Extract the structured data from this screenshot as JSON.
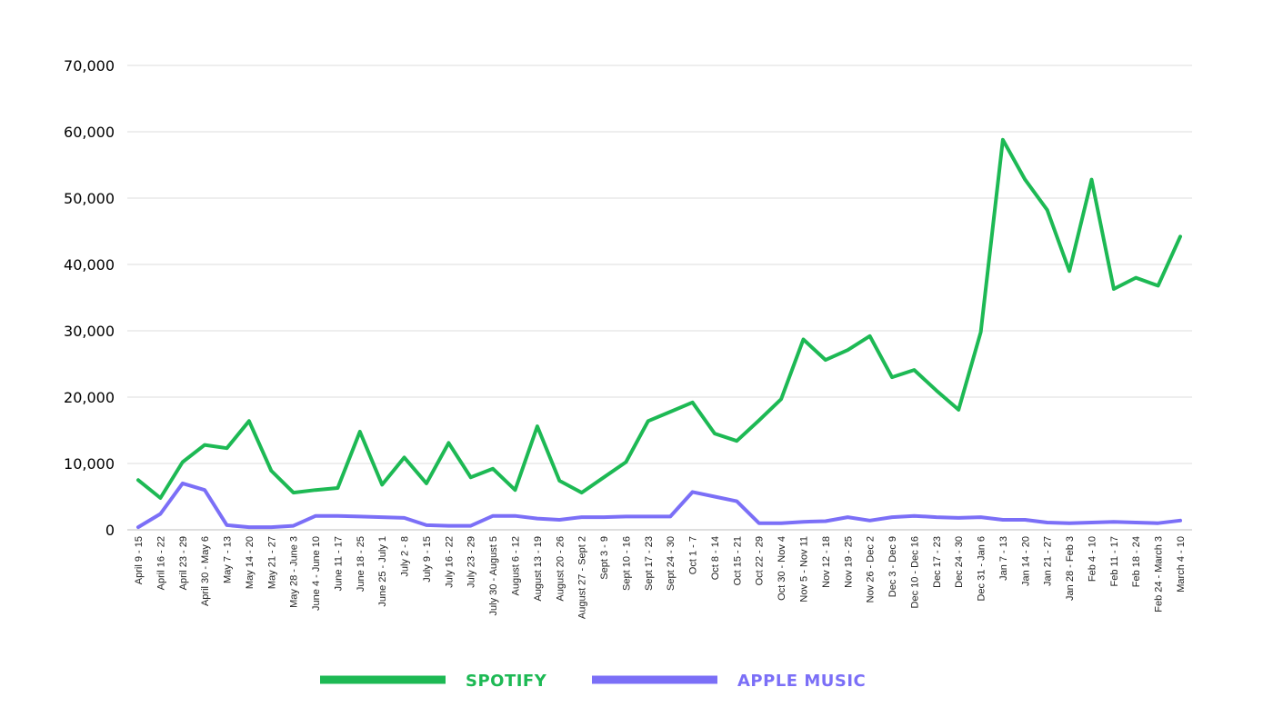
{
  "chart_data": {
    "type": "line",
    "title": "",
    "xlabel": "",
    "ylabel": "",
    "ylim": [
      0,
      70000
    ],
    "yticks": [
      0,
      10000,
      20000,
      30000,
      40000,
      50000,
      60000,
      70000
    ],
    "ytick_labels": [
      "0",
      "10,000",
      "20,000",
      "30,000",
      "40,000",
      "50,000",
      "60,000",
      "70,000"
    ],
    "grid": true,
    "legend_position": "bottom",
    "categories": [
      "April 9 - 15",
      "April 16 - 22",
      "April 23 - 29",
      "April 30 - May 6",
      "May 7 - 13",
      "May 14 - 20",
      "May 21 - 27",
      "May 28 - June 3",
      "June 4 - June 10",
      "June 11 - 17",
      "June 18 - 25",
      "June 25 - July 1",
      "July 2 - 8",
      "July 9 - 15",
      "July 16 - 22",
      "July 23 - 29",
      "July 30 - August 5",
      "August 6 - 12",
      "August 13 - 19",
      "August 20 - 26",
      "August 27 - Sept 2",
      "Sept 3 - 9",
      "Sept 10 - 16",
      "Sept 17 - 23",
      "Sept 24 - 30",
      "Oct 1 - 7",
      "Oct 8 - 14",
      "Oct 15 - 21",
      "Oct 22 - 29",
      "Oct 30 - Nov 4",
      "Nov 5 - Nov 11",
      "Nov 12 - 18",
      "Nov 19 - 25",
      "Nov 26 - Dec 2",
      "Dec 3 - Dec 9",
      "Dec 10 - Dec 16",
      "Dec 17 - 23",
      "Dec 24 - 30",
      "Dec 31 - Jan 6",
      "Jan 7 - 13",
      "Jan 14 - 20",
      "Jan 21 - 27",
      "Jan 28 - Feb 3",
      "Feb 4 - 10",
      "Feb 11 - 17",
      "Feb 18 - 24",
      "Feb 24 - March 3",
      "March 4 - 10"
    ],
    "series": [
      {
        "name": "SPOTIFY",
        "color": "#1db954",
        "values": [
          7500,
          4800,
          10200,
          12800,
          12300,
          16400,
          8900,
          5600,
          6000,
          6300,
          14800,
          6800,
          10900,
          7000,
          13100,
          7900,
          9200,
          6000,
          15600,
          7400,
          5600,
          7900,
          10200,
          16400,
          17800,
          19200,
          14500,
          13400,
          16500,
          19700,
          28700,
          25600,
          27100,
          29200,
          23000,
          24100,
          21000,
          18100,
          29800,
          58800,
          52800,
          48200,
          39000,
          52800,
          36300,
          38000,
          36800,
          44200
        ]
      },
      {
        "name": "APPLE MUSIC",
        "color": "#7b6ff7",
        "values": [
          400,
          2400,
          7000,
          6000,
          700,
          400,
          400,
          600,
          2100,
          2100,
          2000,
          1900,
          1800,
          700,
          600,
          600,
          2100,
          2100,
          1700,
          1500,
          1900,
          1900,
          2000,
          2000,
          2000,
          5700,
          5000,
          4300,
          1000,
          1000,
          1200,
          1300,
          1900,
          1400,
          1900,
          2100,
          1900,
          1800,
          1900,
          1500,
          1500,
          1100,
          1000,
          1100,
          1200,
          1100,
          1000,
          1400
        ]
      }
    ]
  }
}
